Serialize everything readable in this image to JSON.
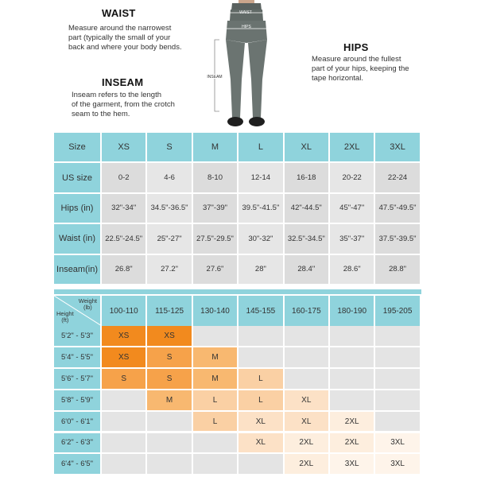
{
  "guide": {
    "waist": {
      "title": "WAIST",
      "desc": [
        "Measure around the narrowest",
        "part (typically the small of your",
        "back and where your body bends."
      ]
    },
    "hips": {
      "title": "HIPS",
      "desc": [
        "Measure around the fullest",
        "part of your hips, keeping the",
        "tape horizontal."
      ]
    },
    "inseam": {
      "title": "INSEAM",
      "desc": [
        "Inseam refers to the length",
        "of the garment, from the crotch",
        "seam to the hem."
      ]
    },
    "figure_labels": {
      "waist": "WAIST",
      "hips": "HIPS",
      "inseam": "INSEAM"
    }
  },
  "size_table": {
    "rows": [
      {
        "label": "Size",
        "values": [
          "XS",
          "S",
          "M",
          "L",
          "XL",
          "2XL",
          "3XL"
        ]
      },
      {
        "label": "US size",
        "values": [
          "0-2",
          "4-6",
          "8-10",
          "12-14",
          "16-18",
          "20-22",
          "22-24"
        ]
      },
      {
        "label": "Hips (in)",
        "values": [
          "32\"-34\"",
          "34.5\"-36.5\"",
          "37\"-39\"",
          "39.5\"-41.5\"",
          "42\"-44.5\"",
          "45\"-47\"",
          "47.5\"-49.5\""
        ]
      },
      {
        "label": "Waist (in)",
        "values": [
          "22.5\"-24.5\"",
          "25\"-27\"",
          "27.5\"-29.5\"",
          "30\"-32\"",
          "32.5\"-34.5\"",
          "35\"-37\"",
          "37.5\"-39.5\""
        ]
      },
      {
        "label": "Inseam(in)",
        "values": [
          "26.8\"",
          "27.2\"",
          "27.6\"",
          "28\"",
          "28.4\"",
          "28.6\"",
          "28.8\""
        ]
      }
    ]
  },
  "fit_chart": {
    "weight_label": [
      "Weight",
      "(lb)"
    ],
    "height_label": [
      "Height",
      "(ft)"
    ],
    "weights": [
      "100-110",
      "115-125",
      "130-140",
      "145-155",
      "160-175",
      "180-190",
      "195-205"
    ],
    "heights": [
      "5'2\" - 5'3\"",
      "5'4\" - 5'5\"",
      "5'6\" - 5'7\"",
      "5'8\" - 5'9\"",
      "6'0\" - 6'1\"",
      "6'2\" - 6'3\"",
      "6'4\" - 6'5\""
    ],
    "cells": [
      [
        "XS",
        "XS",
        "",
        "",
        "",
        "",
        ""
      ],
      [
        "XS",
        "S",
        "M",
        "",
        "",
        "",
        ""
      ],
      [
        "S",
        "S",
        "M",
        "L",
        "",
        "",
        ""
      ],
      [
        "",
        "M",
        "L",
        "L",
        "XL",
        "",
        ""
      ],
      [
        "",
        "",
        "L",
        "XL",
        "XL",
        "2XL",
        ""
      ],
      [
        "",
        "",
        "",
        "XL",
        "2XL",
        "2XL",
        "3XL"
      ],
      [
        "",
        "",
        "",
        "",
        "2XL",
        "3XL",
        "3XL"
      ]
    ],
    "size_colors": {
      "XS": "#f28a1e",
      "S": "#f6a24a",
      "M": "#f8b870",
      "L": "#fad0a4",
      "XL": "#fce1c6",
      "2XL": "#fdeede",
      "3XL": "#fef4ea",
      "": "#e4e4e4"
    }
  }
}
